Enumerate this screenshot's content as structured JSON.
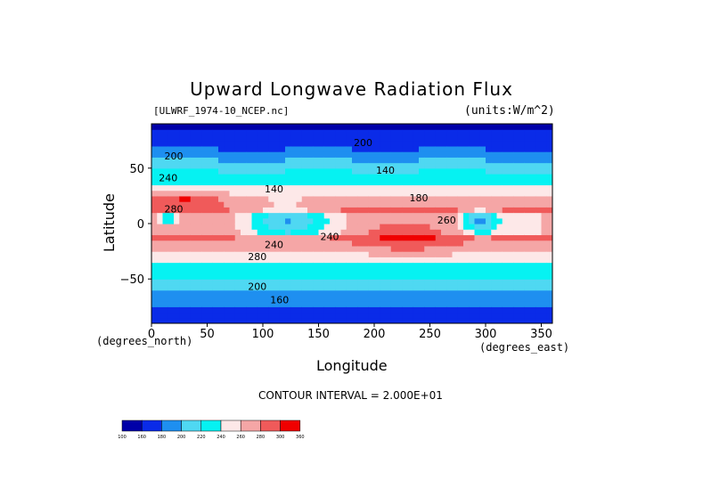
{
  "chart_data": {
    "type": "heatmap",
    "title": "Upward Longwave Radiation Flux",
    "source_label": "[ULWRF_1974-10_NCEP.nc]",
    "units_label": "(units:W/m^2)",
    "xlabel": "Longitude",
    "ylabel": "Latitude",
    "x_units": "(degrees_east)",
    "y_units": "(degrees_north)",
    "xlim": [
      0,
      360
    ],
    "ylim": [
      -90,
      90
    ],
    "x_ticks": [
      "0",
      "50",
      "100",
      "150",
      "200",
      "250",
      "300",
      "350"
    ],
    "x_tick_values": [
      0,
      50,
      100,
      150,
      200,
      250,
      300,
      350
    ],
    "y_ticks": [
      "50",
      "0",
      "−50"
    ],
    "y_tick_values": [
      50,
      0,
      -50
    ],
    "contour_interval_text": "CONTOUR INTERVAL = 2.000E+01",
    "contour_labels": [
      "200",
      "240",
      "280",
      "240",
      "200",
      "160",
      "140",
      "260",
      "280",
      "200",
      "240",
      "140",
      "180"
    ],
    "colorbar": {
      "levels": [
        "100",
        "160",
        "180",
        "200",
        "220",
        "240",
        "260",
        "280",
        "300",
        "360"
      ],
      "colors": [
        "#0000a8",
        "#0a2be8",
        "#1e8ff0",
        "#4fd8f2",
        "#06f2f2",
        "#fde8e8",
        "#f5a6a6",
        "#f05a5a",
        "#f00000"
      ]
    },
    "regions": {
      "polar_north": 180,
      "mid_north": 220,
      "subtropic_north": 270,
      "tropics": 260,
      "convective_maritime": 200,
      "convective_america": 210,
      "subtropic_south": 280,
      "mid_south": 230,
      "polar_south": 170
    }
  }
}
